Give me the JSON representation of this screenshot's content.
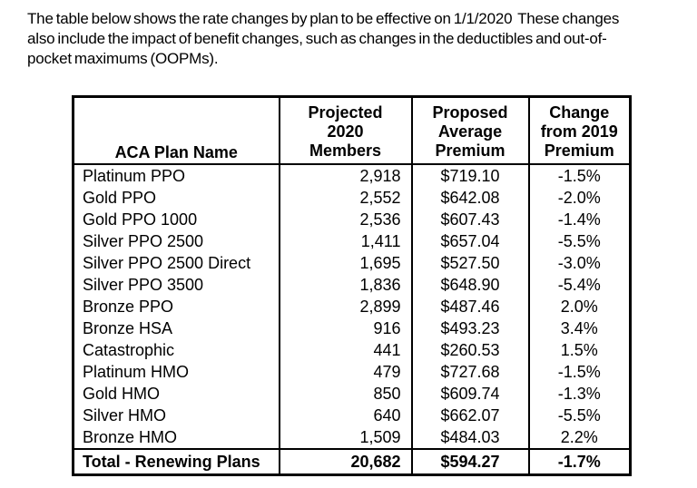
{
  "intro_paragraph": "The table below shows the rate changes by plan to be effective on 1/1/2020  These changes\nalso include the impact of benefit changes, such as changes in the deductibles and out-of-\npocket maximums (OOPMs).",
  "table": {
    "headers": {
      "plan": "ACA Plan Name",
      "members": "Projected\n2020\nMembers",
      "premium": "Proposed\nAverage\nPremium",
      "change": "Change\nfrom 2019\nPremium"
    },
    "rows": [
      {
        "plan": "Platinum PPO",
        "members": "2,918",
        "premium": "$719.10",
        "change": "-1.5%"
      },
      {
        "plan": "Gold PPO",
        "members": "2,552",
        "premium": "$642.08",
        "change": "-2.0%"
      },
      {
        "plan": "Gold PPO 1000",
        "members": "2,536",
        "premium": "$607.43",
        "change": "-1.4%"
      },
      {
        "plan": "Silver PPO 2500",
        "members": "1,411",
        "premium": "$657.04",
        "change": "-5.5%"
      },
      {
        "plan": "Silver PPO 2500 Direct",
        "members": "1,695",
        "premium": "$527.50",
        "change": "-3.0%"
      },
      {
        "plan": "Silver PPO 3500",
        "members": "1,836",
        "premium": "$648.90",
        "change": "-5.4%"
      },
      {
        "plan": "Bronze PPO",
        "members": "2,899",
        "premium": "$487.46",
        "change": "2.0%"
      },
      {
        "plan": "Bronze HSA",
        "members": "916",
        "premium": "$493.23",
        "change": "3.4%"
      },
      {
        "plan": "Catastrophic",
        "members": "441",
        "premium": "$260.53",
        "change": "1.5%"
      },
      {
        "plan": "Platinum HMO",
        "members": "479",
        "premium": "$727.68",
        "change": "-1.5%"
      },
      {
        "plan": "Gold HMO",
        "members": "850",
        "premium": "$609.74",
        "change": "-1.3%"
      },
      {
        "plan": "Silver HMO",
        "members": "640",
        "premium": "$662.07",
        "change": "-5.5%"
      },
      {
        "plan": "Bronze HMO",
        "members": "1,509",
        "premium": "$484.03",
        "change": "2.2%"
      }
    ],
    "total": {
      "plan": "Total - Renewing Plans",
      "members": "20,682",
      "premium": "$594.27",
      "change": "-1.7%"
    }
  },
  "colors": {
    "background": "#ffffff",
    "text": "#000000",
    "border": "#000000"
  }
}
